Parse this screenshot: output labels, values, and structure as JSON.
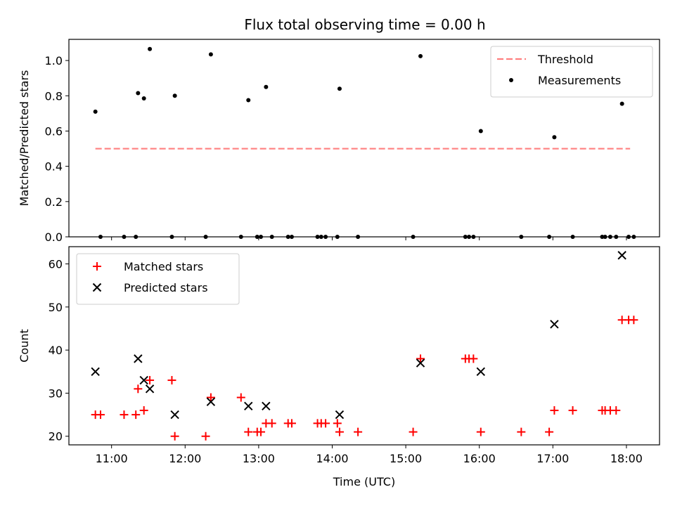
{
  "chart_data": [
    {
      "type": "scatter",
      "title": "Flux total observing time = 0.00 h",
      "xlabel": "",
      "ylabel": "Matched/Predicted stars",
      "xlim": [
        10.42,
        18.45
      ],
      "ylim": [
        0,
        1.12
      ],
      "yticks": [
        0.0,
        0.2,
        0.4,
        0.6,
        0.8,
        1.0
      ],
      "ytick_labels": [
        "0.0",
        "0.2",
        "0.4",
        "0.6",
        "0.8",
        "1.0"
      ],
      "legend_position": "top-right",
      "threshold": {
        "name": "Threshold",
        "y": 0.5,
        "x_range": [
          10.78,
          18.05
        ],
        "color": "#ff7f7f",
        "style": "dashed"
      },
      "series": [
        {
          "name": "Measurements",
          "marker": "dot",
          "color": "#000000",
          "points": [
            [
              10.78,
              0.71
            ],
            [
              10.85,
              0.0
            ],
            [
              11.17,
              0.0
            ],
            [
              11.33,
              0.0
            ],
            [
              11.36,
              0.815
            ],
            [
              11.44,
              0.785
            ],
            [
              11.52,
              1.065
            ],
            [
              11.82,
              0.0
            ],
            [
              11.86,
              0.8
            ],
            [
              12.28,
              0.0
            ],
            [
              12.35,
              1.035
            ],
            [
              12.76,
              0.0
            ],
            [
              12.86,
              0.775
            ],
            [
              12.98,
              0.0
            ],
            [
              13.03,
              0.0
            ],
            [
              13.1,
              0.85
            ],
            [
              13.18,
              0.0
            ],
            [
              13.4,
              0.0
            ],
            [
              13.45,
              0.0
            ],
            [
              13.8,
              0.0
            ],
            [
              13.85,
              0.0
            ],
            [
              13.91,
              0.0
            ],
            [
              14.07,
              0.0
            ],
            [
              14.1,
              0.84
            ],
            [
              14.35,
              0.0
            ],
            [
              15.1,
              0.0
            ],
            [
              15.2,
              1.025
            ],
            [
              15.81,
              0.0
            ],
            [
              15.86,
              0.0
            ],
            [
              15.92,
              0.0
            ],
            [
              16.02,
              0.6
            ],
            [
              16.57,
              0.0
            ],
            [
              16.95,
              0.0
            ],
            [
              17.02,
              0.565
            ],
            [
              17.27,
              0.0
            ],
            [
              17.67,
              0.0
            ],
            [
              17.71,
              0.0
            ],
            [
              17.78,
              0.0
            ],
            [
              17.86,
              0.0
            ],
            [
              17.94,
              0.755
            ],
            [
              18.03,
              0.0
            ],
            [
              18.1,
              0.0
            ]
          ]
        }
      ]
    },
    {
      "type": "scatter",
      "title": "",
      "xlabel": "Time (UTC)",
      "ylabel": "Count",
      "xlim": [
        10.42,
        18.45
      ],
      "ylim": [
        18,
        64
      ],
      "xticks": [
        11,
        12,
        13,
        14,
        15,
        16,
        17,
        18
      ],
      "xtick_labels": [
        "11:00",
        "12:00",
        "13:00",
        "14:00",
        "15:00",
        "16:00",
        "17:00",
        "18:00"
      ],
      "yticks": [
        20,
        30,
        40,
        50,
        60
      ],
      "ytick_labels": [
        "20",
        "30",
        "40",
        "50",
        "60"
      ],
      "legend_position": "top-left",
      "series": [
        {
          "name": "Matched stars",
          "marker": "plus",
          "color": "#ff0000",
          "points": [
            [
              10.78,
              25
            ],
            [
              10.85,
              25
            ],
            [
              11.17,
              25
            ],
            [
              11.33,
              25
            ],
            [
              11.36,
              31
            ],
            [
              11.44,
              26
            ],
            [
              11.52,
              33
            ],
            [
              11.82,
              33
            ],
            [
              11.86,
              20
            ],
            [
              12.28,
              20
            ],
            [
              12.35,
              29
            ],
            [
              12.76,
              29
            ],
            [
              12.86,
              21
            ],
            [
              12.98,
              21
            ],
            [
              13.03,
              21
            ],
            [
              13.1,
              23
            ],
            [
              13.18,
              23
            ],
            [
              13.4,
              23
            ],
            [
              13.45,
              23
            ],
            [
              13.8,
              23
            ],
            [
              13.85,
              23
            ],
            [
              13.91,
              23
            ],
            [
              14.07,
              23
            ],
            [
              14.1,
              21
            ],
            [
              14.35,
              21
            ],
            [
              15.1,
              21
            ],
            [
              15.2,
              38
            ],
            [
              15.81,
              38
            ],
            [
              15.86,
              38
            ],
            [
              15.92,
              38
            ],
            [
              16.02,
              21
            ],
            [
              16.57,
              21
            ],
            [
              16.95,
              21
            ],
            [
              17.02,
              26
            ],
            [
              17.27,
              26
            ],
            [
              17.67,
              26
            ],
            [
              17.71,
              26
            ],
            [
              17.78,
              26
            ],
            [
              17.86,
              26
            ],
            [
              17.94,
              47
            ],
            [
              18.03,
              47
            ],
            [
              18.1,
              47
            ]
          ]
        },
        {
          "name": "Predicted stars",
          "marker": "x",
          "color": "#000000",
          "points": [
            [
              10.78,
              35
            ],
            [
              11.36,
              38
            ],
            [
              11.44,
              33
            ],
            [
              11.52,
              31
            ],
            [
              11.86,
              25
            ],
            [
              12.35,
              28
            ],
            [
              12.86,
              27
            ],
            [
              13.1,
              27
            ],
            [
              14.1,
              25
            ],
            [
              15.2,
              37
            ],
            [
              16.02,
              35
            ],
            [
              17.02,
              46
            ],
            [
              17.94,
              62
            ]
          ]
        }
      ]
    }
  ]
}
